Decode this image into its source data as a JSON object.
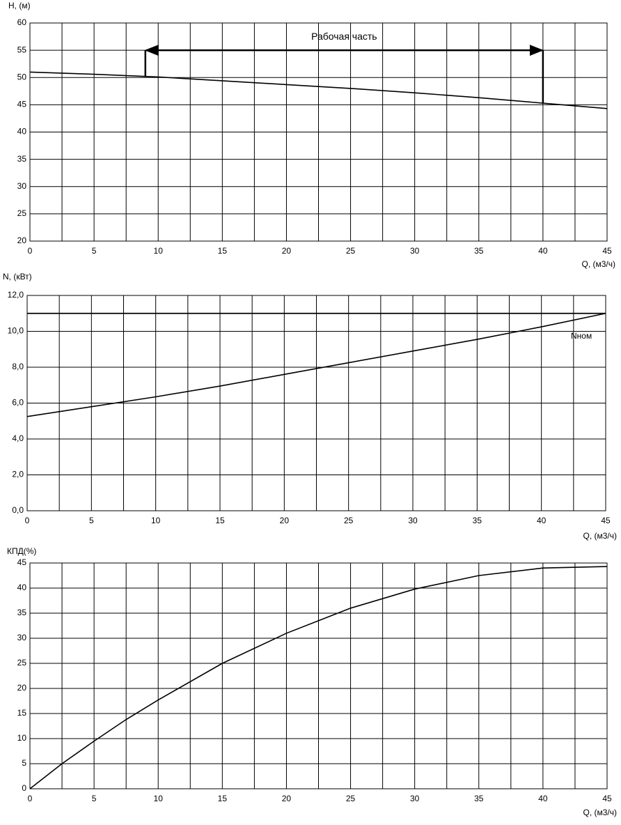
{
  "chart_data": [
    {
      "type": "line",
      "y_label": "H, (м)",
      "x_label": "Q, (м3/ч)",
      "x": [
        0,
        5,
        10,
        15,
        20,
        25,
        30,
        35,
        40,
        45
      ],
      "series": [
        {
          "color": "#000000",
          "values": [
            51,
            50.6,
            50.1,
            49.4,
            48.7,
            48,
            47.2,
            46.3,
            45.3,
            44.3
          ]
        }
      ],
      "xlim": [
        0,
        45
      ],
      "xticks": [
        0,
        5,
        10,
        15,
        20,
        25,
        30,
        35,
        40,
        45
      ],
      "minor_xticks": [
        2.5,
        7.5,
        12.5,
        17.5,
        22.5,
        27.5,
        32.5,
        37.5,
        42.5
      ],
      "ylim": [
        20,
        60
      ],
      "yticks": [
        20,
        25,
        30,
        35,
        40,
        45,
        50,
        55,
        60
      ],
      "grid": true,
      "working_range": {
        "label": "Рабочая часть",
        "x": [
          9,
          40
        ],
        "y": 55,
        "y_ends": [
          50.1,
          45.3
        ]
      }
    },
    {
      "type": "line",
      "y_label": "N, (кВт)",
      "x_label": "Q, (м3/ч)",
      "x": [
        0,
        5,
        10,
        15,
        20,
        25,
        30,
        35,
        40,
        45
      ],
      "series": [
        {
          "color": "#000000",
          "values": [
            5.25,
            5.8,
            6.35,
            6.95,
            7.6,
            8.25,
            8.9,
            9.55,
            10.25,
            11
          ]
        }
      ],
      "xlim": [
        0,
        45
      ],
      "xticks": [
        0,
        5,
        10,
        15,
        20,
        25,
        30,
        35,
        40,
        45
      ],
      "minor_xticks": [
        2.5,
        7.5,
        12.5,
        17.5,
        22.5,
        27.5,
        32.5,
        37.5,
        42.5
      ],
      "ylim": [
        0,
        12
      ],
      "yticks": [
        {
          "value": 0,
          "label": "0,0"
        },
        {
          "value": 2,
          "label": "2,0"
        },
        {
          "value": 4,
          "label": "4,0"
        },
        {
          "value": 6,
          "label": "6,0"
        },
        {
          "value": 8,
          "label": "8,0"
        },
        {
          "value": 10,
          "label": "10,0"
        },
        {
          "value": 12,
          "label": "12,0"
        }
      ],
      "grid": true,
      "hlines": [
        {
          "value": 11,
          "label": "Nном"
        }
      ]
    },
    {
      "type": "line",
      "y_label": "КПД(%)",
      "x_label": "Q, (м3/ч)",
      "x": [
        0,
        2.5,
        5,
        7.5,
        10,
        15,
        20,
        25,
        30,
        35,
        40,
        45
      ],
      "series": [
        {
          "color": "#000000",
          "values": [
            0,
            5,
            9.5,
            13.8,
            17.7,
            25,
            31,
            36,
            39.8,
            42.5,
            44,
            44.3
          ]
        }
      ],
      "xlim": [
        0,
        45
      ],
      "xticks": [
        0,
        5,
        10,
        15,
        20,
        25,
        30,
        35,
        40,
        45
      ],
      "minor_xticks": [
        2.5,
        7.5,
        12.5,
        17.5,
        22.5,
        27.5,
        32.5,
        37.5,
        42.5
      ],
      "ylim": [
        0,
        45
      ],
      "yticks": [
        0,
        5,
        10,
        15,
        20,
        25,
        30,
        35,
        40,
        45
      ],
      "grid": true
    }
  ]
}
